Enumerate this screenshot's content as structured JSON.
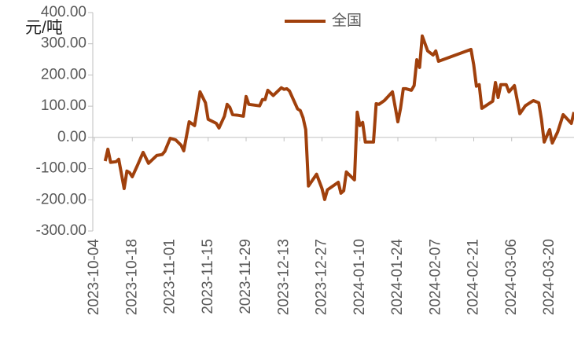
{
  "chart_data": {
    "type": "line",
    "y_axis_label": "元/吨",
    "x": [
      "2023-10-08",
      "2023-10-09",
      "2023-10-10",
      "2023-10-12",
      "2023-10-13",
      "2023-10-15",
      "2023-10-16",
      "2023-10-17",
      "2023-10-18",
      "2023-10-20",
      "2023-10-22",
      "2023-10-24",
      "2023-10-27",
      "2023-10-29",
      "2023-10-30",
      "2023-11-01",
      "2023-11-03",
      "2023-11-05",
      "2023-11-06",
      "2023-11-08",
      "2023-11-10",
      "2023-11-12",
      "2023-11-13",
      "2023-11-14",
      "2023-11-15",
      "2023-11-18",
      "2023-11-19",
      "2023-11-21",
      "2023-11-22",
      "2023-11-23",
      "2023-11-24",
      "2023-11-26",
      "2023-11-28",
      "2023-11-29",
      "2023-11-30",
      "2023-12-04",
      "2023-12-05",
      "2023-12-06",
      "2023-12-07",
      "2023-12-09",
      "2023-12-11",
      "2023-12-12",
      "2023-12-13",
      "2023-12-14",
      "2023-12-15",
      "2023-12-18",
      "2023-12-19",
      "2023-12-20",
      "2023-12-21",
      "2023-12-22",
      "2023-12-25",
      "2023-12-27",
      "2023-12-28",
      "2023-12-29",
      "2024-01-02",
      "2024-01-03",
      "2024-01-04",
      "2024-01-05",
      "2024-01-08",
      "2024-01-09",
      "2024-01-10",
      "2024-01-11",
      "2024-01-12",
      "2024-01-15",
      "2024-01-16",
      "2024-01-17",
      "2024-01-19",
      "2024-01-22",
      "2024-01-24",
      "2024-01-25",
      "2024-01-26",
      "2024-01-27",
      "2024-01-29",
      "2024-01-30",
      "2024-01-31",
      "2024-02-01",
      "2024-02-02",
      "2024-02-04",
      "2024-02-06",
      "2024-02-07",
      "2024-02-08",
      "2024-02-20",
      "2024-02-21",
      "2024-02-22",
      "2024-02-23",
      "2024-02-24",
      "2024-02-28",
      "2024-02-29",
      "2024-03-01",
      "2024-03-02",
      "2024-03-04",
      "2024-03-05",
      "2024-03-07",
      "2024-03-09",
      "2024-03-11",
      "2024-03-14",
      "2024-03-16",
      "2024-03-17",
      "2024-03-18",
      "2024-03-20",
      "2024-03-21",
      "2024-03-23",
      "2024-03-25",
      "2024-03-28",
      "2024-03-29"
    ],
    "series": [
      {
        "name": "全国",
        "color": "#a0400c",
        "values": [
          -76,
          -38,
          -80,
          -78,
          -70,
          -164,
          -108,
          -113,
          -126,
          -88,
          -48,
          -83,
          -58,
          -55,
          -45,
          -3,
          -8,
          -25,
          -43,
          50,
          38,
          146,
          128,
          111,
          58,
          45,
          30,
          68,
          106,
          96,
          73,
          71,
          68,
          131,
          106,
          101,
          121,
          121,
          151,
          134,
          151,
          159,
          154,
          156,
          149,
          91,
          86,
          63,
          25,
          -156,
          -118,
          -164,
          -199,
          -168,
          -144,
          -179,
          -171,
          -111,
          -136,
          81,
          38,
          48,
          -15,
          -15,
          108,
          106,
          118,
          146,
          50,
          93,
          156,
          156,
          151,
          166,
          249,
          224,
          325,
          277,
          264,
          277,
          244,
          282,
          232,
          164,
          169,
          93,
          116,
          176,
          128,
          169,
          169,
          146,
          166,
          76,
          101,
          118,
          111,
          58,
          -15,
          25,
          -18,
          18,
          73,
          45,
          81
        ]
      }
    ],
    "xlim": [
      "2023-10-04",
      "2024-03-29"
    ],
    "xticks": [
      "2023-10-04",
      "2023-10-18",
      "2023-11-01",
      "2023-11-15",
      "2023-11-29",
      "2023-12-13",
      "2023-12-27",
      "2024-01-10",
      "2024-01-24",
      "2024-02-07",
      "2024-02-21",
      "2024-03-06",
      "2024-03-20"
    ],
    "ylim": [
      -300,
      400
    ],
    "yticks": [
      {
        "value": -300,
        "label": "-300.00"
      },
      {
        "value": -200,
        "label": "-200.00"
      },
      {
        "value": -100,
        "label": "-100.00"
      },
      {
        "value": 0,
        "label": "0.00"
      },
      {
        "value": 100,
        "label": "100.00"
      },
      {
        "value": 200,
        "label": "200.00"
      },
      {
        "value": 300,
        "label": "300.00"
      },
      {
        "value": 400,
        "label": "400.00"
      }
    ],
    "legend": "top"
  }
}
